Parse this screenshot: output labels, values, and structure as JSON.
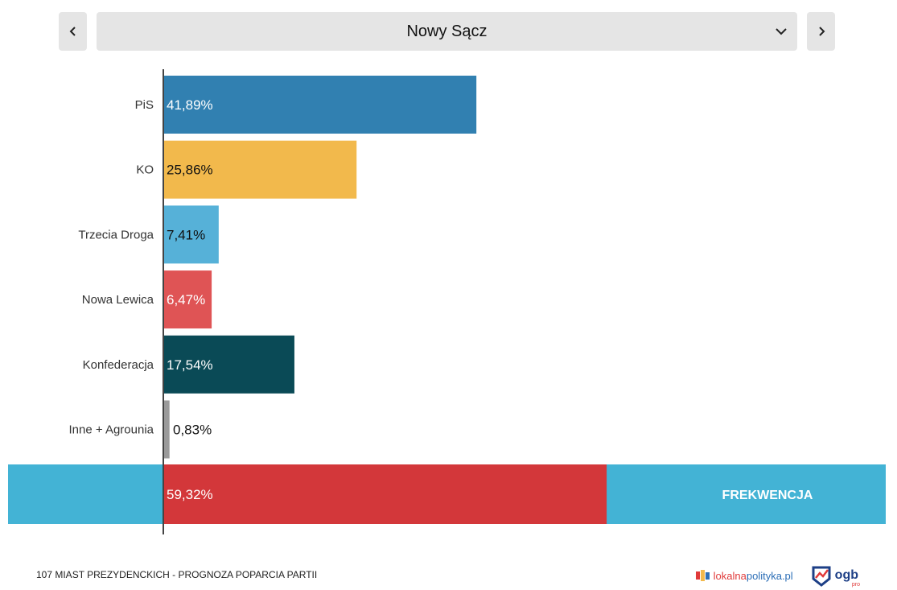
{
  "header": {
    "city_label": "Nowy Sącz",
    "prev_icon": "chevron-left-icon",
    "next_icon": "chevron-right-icon",
    "dropdown_icon": "chevron-down-icon"
  },
  "chart_data": {
    "type": "bar",
    "orientation": "horizontal",
    "categories": [
      "PiS",
      "KO",
      "Trzecia Droga",
      "Nowa Lewica",
      "Konfederacja",
      "Inne + Agrounia"
    ],
    "values": [
      41.89,
      25.86,
      7.41,
      6.47,
      17.54,
      0.83
    ],
    "value_labels": [
      "41,89%",
      "25,86%",
      "7,41%",
      "6,47%",
      "17,54%",
      "0,83%"
    ],
    "colors": [
      "#3180b1",
      "#f2b94c",
      "#56b1d8",
      "#df5455",
      "#0a4a56",
      "#9a9a9a"
    ],
    "label_colors": [
      "#ffffff",
      "#111111",
      "#111111",
      "#ffffff",
      "#ffffff",
      "#111111"
    ],
    "xlim": [
      0,
      100
    ],
    "turnout": {
      "value": 59.32,
      "value_label": "59,32%",
      "label": "FREKWENCJA",
      "bar_color": "#d3373a",
      "band_color": "#43b3d5"
    }
  },
  "footer": {
    "title": "107 MIAST PREZYDENCKICH - PROGNOZA POPARCIA PARTII",
    "lp_logo_part1": "lokalna",
    "lp_logo_part2": "polityka.pl",
    "ogb_logo_text": "ogb",
    "ogb_logo_sub": "pro",
    "lp_icon": "lokalnapolityka-logo-icon",
    "ogb_icon": "ogb-logo-icon"
  }
}
